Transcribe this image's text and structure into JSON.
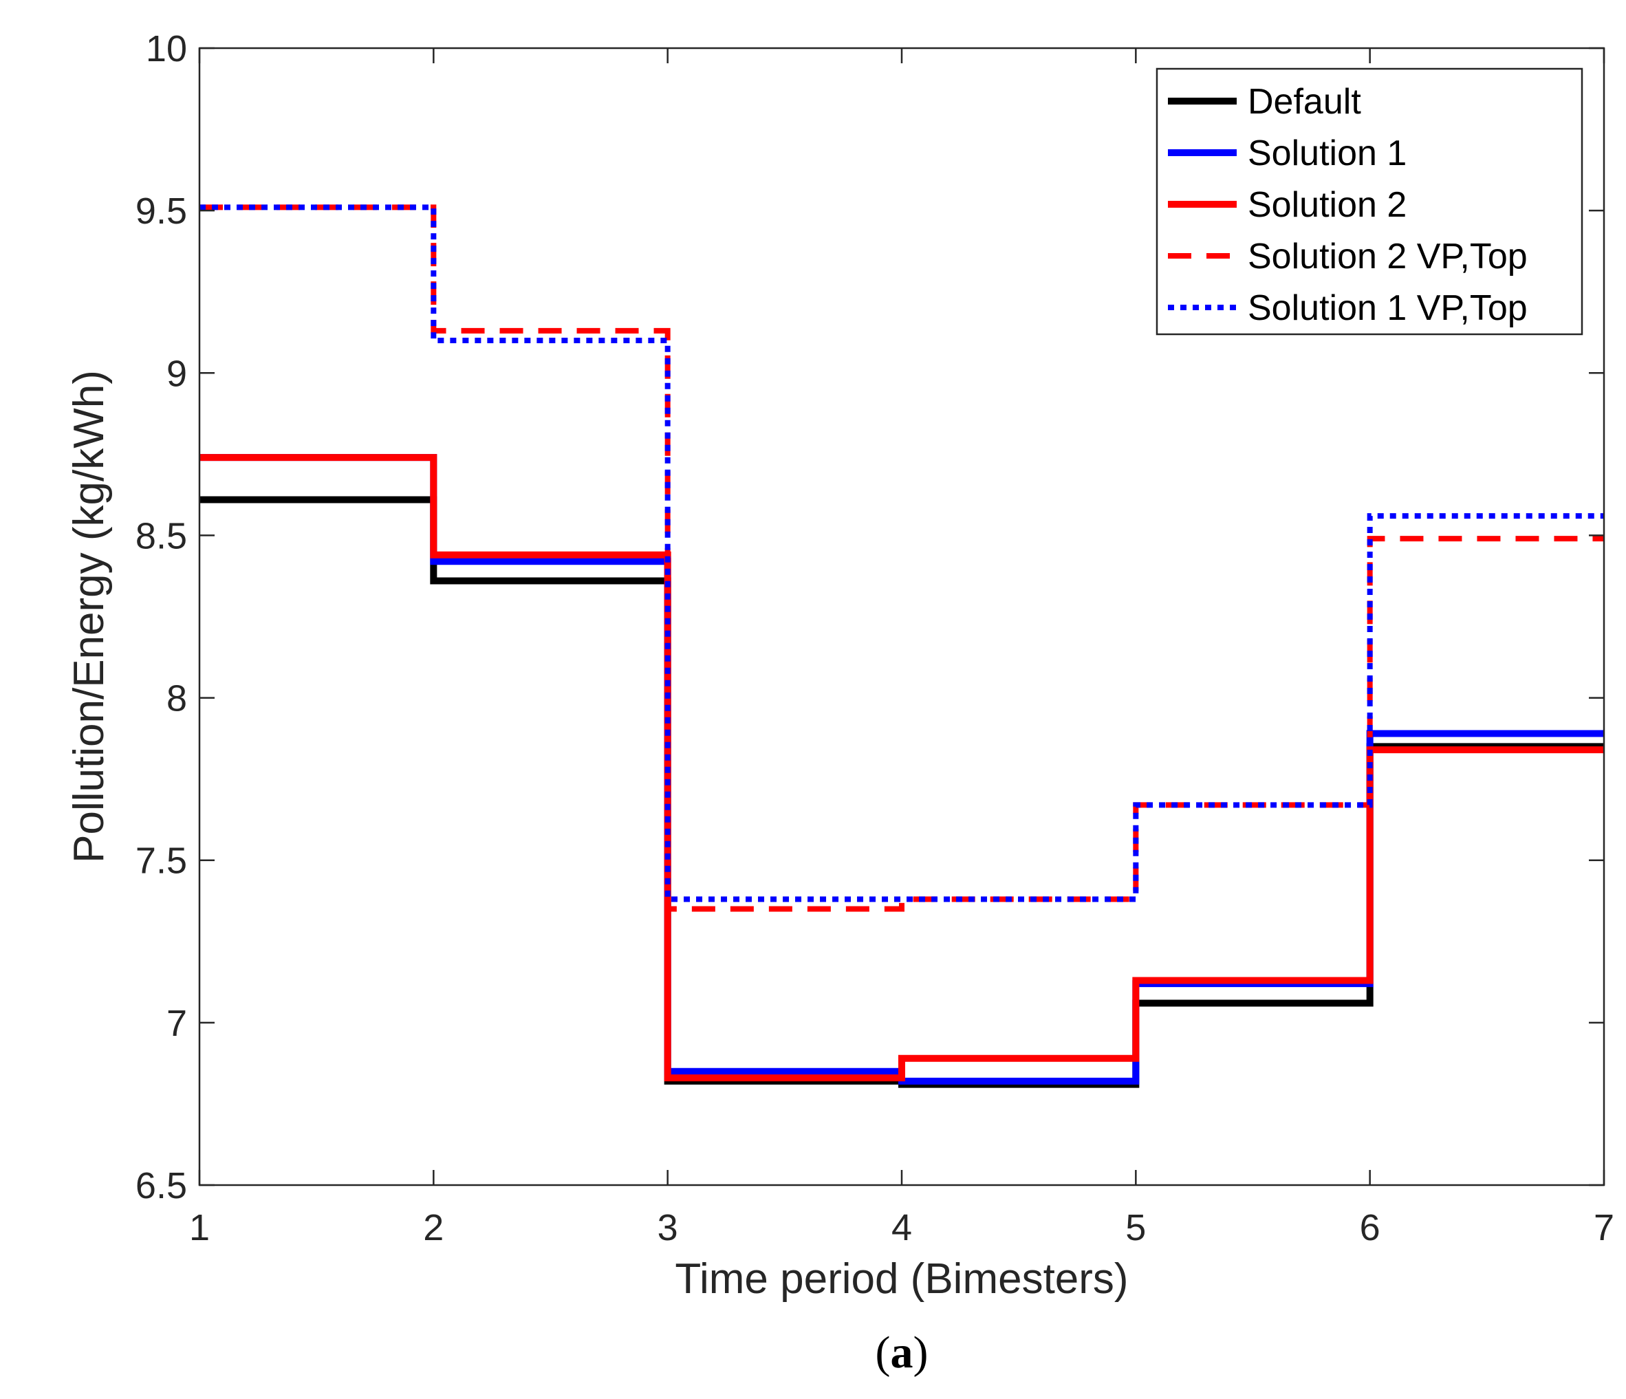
{
  "chart_data": {
    "type": "line",
    "step": true,
    "xlabel": "Time period (Bimesters)",
    "ylabel": "Pollution/Energy (kg/kWh)",
    "caption": "(a)",
    "caption_open": "(",
    "caption_letter": "a",
    "caption_close": ")",
    "xlim": [
      1,
      7
    ],
    "ylim": [
      6.5,
      10
    ],
    "xticks": [
      1,
      2,
      3,
      4,
      5,
      6,
      7
    ],
    "xtick_labels": [
      "1",
      "2",
      "3",
      "4",
      "5",
      "6",
      "7"
    ],
    "yticks": [
      6.5,
      7,
      7.5,
      8,
      8.5,
      9,
      9.5,
      10
    ],
    "ytick_labels": [
      "6.5",
      "7",
      "7.5",
      "8",
      "8.5",
      "9",
      "9.5",
      "10"
    ],
    "grid": false,
    "legend_position": "top-right",
    "x": [
      1,
      2,
      3,
      4,
      5,
      6,
      7
    ],
    "series": [
      {
        "name": "Default",
        "color": "#000000",
        "style": "solid",
        "values": [
          8.61,
          8.36,
          6.82,
          6.81,
          7.06,
          7.85,
          7.85
        ]
      },
      {
        "name": "Solution 1",
        "color": "#0000ff",
        "style": "solid",
        "values": [
          8.74,
          8.42,
          6.85,
          6.82,
          7.12,
          7.89,
          7.89
        ]
      },
      {
        "name": "Solution 2",
        "color": "#ff0000",
        "style": "solid",
        "values": [
          8.74,
          8.44,
          6.83,
          6.89,
          7.13,
          7.84,
          7.84
        ]
      },
      {
        "name": "Solution 2 VP,Top",
        "color": "#ff0000",
        "style": "dashed",
        "values": [
          9.51,
          9.13,
          7.35,
          7.38,
          7.67,
          8.49,
          8.49
        ]
      },
      {
        "name": "Solution 1 VP,Top",
        "color": "#0000ff",
        "style": "dotted",
        "values": [
          9.51,
          9.1,
          7.38,
          7.38,
          7.67,
          8.56,
          8.56
        ]
      }
    ]
  }
}
